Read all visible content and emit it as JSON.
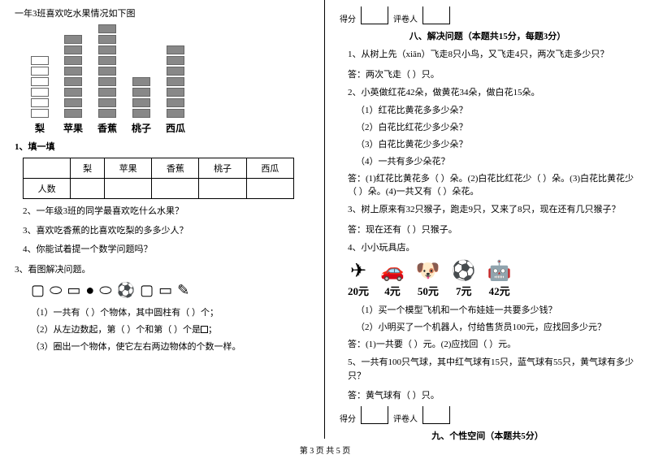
{
  "left": {
    "intro": "一年3班喜欢吃水果情况如下图",
    "fruits": [
      "梨",
      "苹果",
      "香蕉",
      "桃子",
      "西瓜"
    ],
    "bars": [
      {
        "total": 6,
        "filled": 0
      },
      {
        "total": 8,
        "filled": 8
      },
      {
        "total": 9,
        "filled": 9
      },
      {
        "total": 4,
        "filled": 4
      },
      {
        "total": 7,
        "filled": 7
      }
    ],
    "fill1": "1、填一填",
    "rowhead": "人数",
    "q2": "2、一年级3班的同学最喜欢吃什么水果？",
    "q3": "3、喜欢吃香蕉的比喜欢吃梨的多多少人？",
    "q4": "4、你能试着提一个数学问题吗？",
    "pict_head": "3、看图解决问题。",
    "pict_s1": "（1）一共有（    ）个物体，其中圆柱有（    ）个；",
    "pict_s2_a": "（2）从左边数起，第（    ）个和第（    ）个是",
    "pict_s2_b": "；",
    "pict_s3": "（3）圈出一个物体，使它左右两边物体的个数一样。"
  },
  "right": {
    "score_labels": {
      "a": "得分",
      "b": "评卷人"
    },
    "sec8": "八、解决问题（本题共15分，每题3分）",
    "q1": "1、从树上先（xiān）飞走8只小鸟，又飞走4只，两次飞走多少只？",
    "a1": "答：两次飞走（    ）只。",
    "q2": "2、小英做红花42朵，做黄花34朵，做白花15朵。",
    "q2a": "（1）红花比黄花多多少朵？",
    "q2b": "（2）白花比红花少多少朵？",
    "q2c": "（3）白花比黄花少多少朵？",
    "q2d": "（4）一共有多少朵花？",
    "a2": "答：(1)红花比黄花多（    ）朵。(2)白花比红花少（    ）朵。(3)白花比黄花少（    ）朵。(4)一共又有（    ）朵花。",
    "q3": "3、树上原来有32只猴子，跑走9只，又来了8只，现在还有几只猴子？",
    "a3": "答：现在还有（    ）只猴子。",
    "q4": "4、小小玩具店。",
    "toys": [
      {
        "icon": "✈",
        "price": "20元"
      },
      {
        "icon": "🚗",
        "price": "4元"
      },
      {
        "icon": "🐶",
        "price": "50元"
      },
      {
        "icon": "⚽",
        "price": "7元"
      },
      {
        "icon": "🤖",
        "price": "42元"
      }
    ],
    "q4a": "（1）买一个模型飞机和一个布娃娃一共要多少钱？",
    "q4b": "（2）小明买了一个机器人，付给售货员100元，应找回多少元？",
    "a4": "答：(1)一共要（    ）元。(2)应找回（    ）元。",
    "q5": "5、一共有100只气球，其中红气球有15只，蓝气球有55只，黄气球有多少只？",
    "a5": "答：黄气球有（    ）只。",
    "sec9": "九、个性空间（本题共5分）"
  },
  "footer": "第 3 页 共 5 页"
}
